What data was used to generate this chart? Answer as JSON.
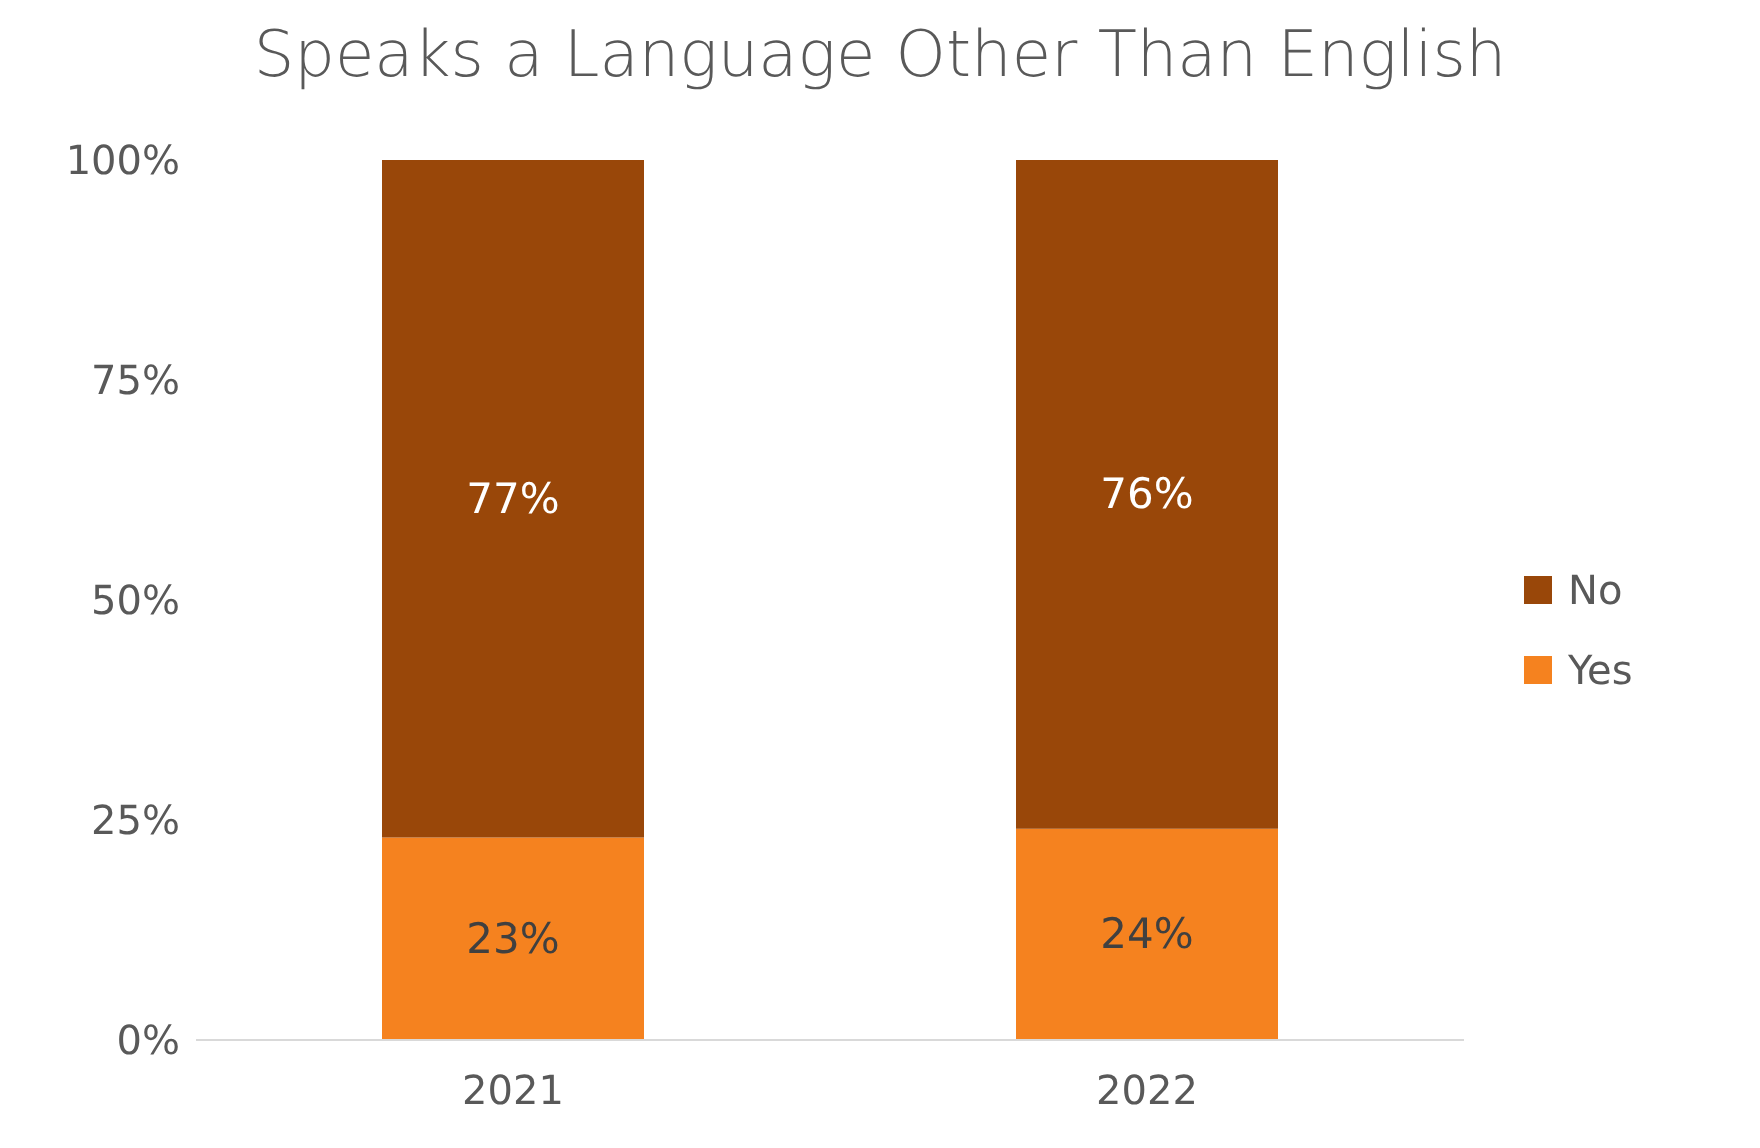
{
  "chart_data": {
    "type": "bar",
    "title": "Speaks a Language Other Than English",
    "categories": [
      "2021",
      "2022"
    ],
    "stacked": true,
    "series": [
      {
        "name": "Yes",
        "color": "#f5821f",
        "values": [
          23,
          24
        ],
        "value_labels": [
          "23%",
          "24%"
        ]
      },
      {
        "name": "No",
        "color": "#994709",
        "values": [
          77,
          76
        ],
        "value_labels": [
          "77%",
          "76%"
        ]
      }
    ],
    "ylim": [
      0,
      100
    ],
    "yticks": [
      {
        "value": 0,
        "label": "0%"
      },
      {
        "value": 25,
        "label": "25%"
      },
      {
        "value": 50,
        "label": "50%"
      },
      {
        "value": 75,
        "label": "75%"
      },
      {
        "value": 100,
        "label": "100%"
      }
    ],
    "legend": "right",
    "grid": false
  }
}
